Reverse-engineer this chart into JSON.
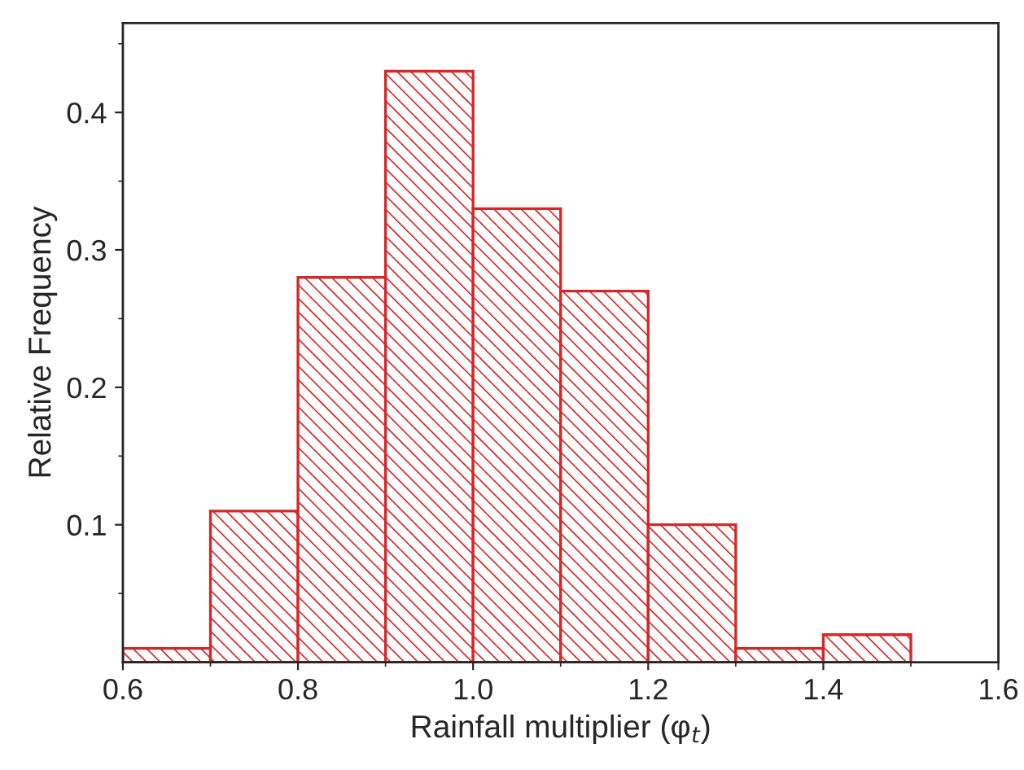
{
  "chart_data": {
    "type": "histogram",
    "xlabel": "Rainfall multiplier (φ$_{t}$)",
    "ylabel": "Relative Frequency",
    "bins": [
      0.6,
      0.7,
      0.8,
      0.9,
      1.0,
      1.1,
      1.2,
      1.3,
      1.4,
      1.5
    ],
    "values": [
      0.01,
      0.11,
      0.28,
      0.43,
      0.33,
      0.27,
      0.1,
      0.01,
      0.02
    ],
    "color": "#d62728",
    "xlim": [
      0.6,
      1.6
    ],
    "xticks": [
      {
        "value": 0.6,
        "label": "0.6"
      },
      {
        "value": 0.8,
        "label": "0.8"
      },
      {
        "value": 1.0,
        "label": "1.0"
      },
      {
        "value": 1.2,
        "label": "1.2"
      },
      {
        "value": 1.4,
        "label": "1.4"
      },
      {
        "value": 1.6,
        "label": "1.6"
      }
    ],
    "ylim": [
      0,
      0.465
    ],
    "yticks": [
      0.1,
      0.2,
      0.3,
      0.4
    ],
    "grid": false
  }
}
